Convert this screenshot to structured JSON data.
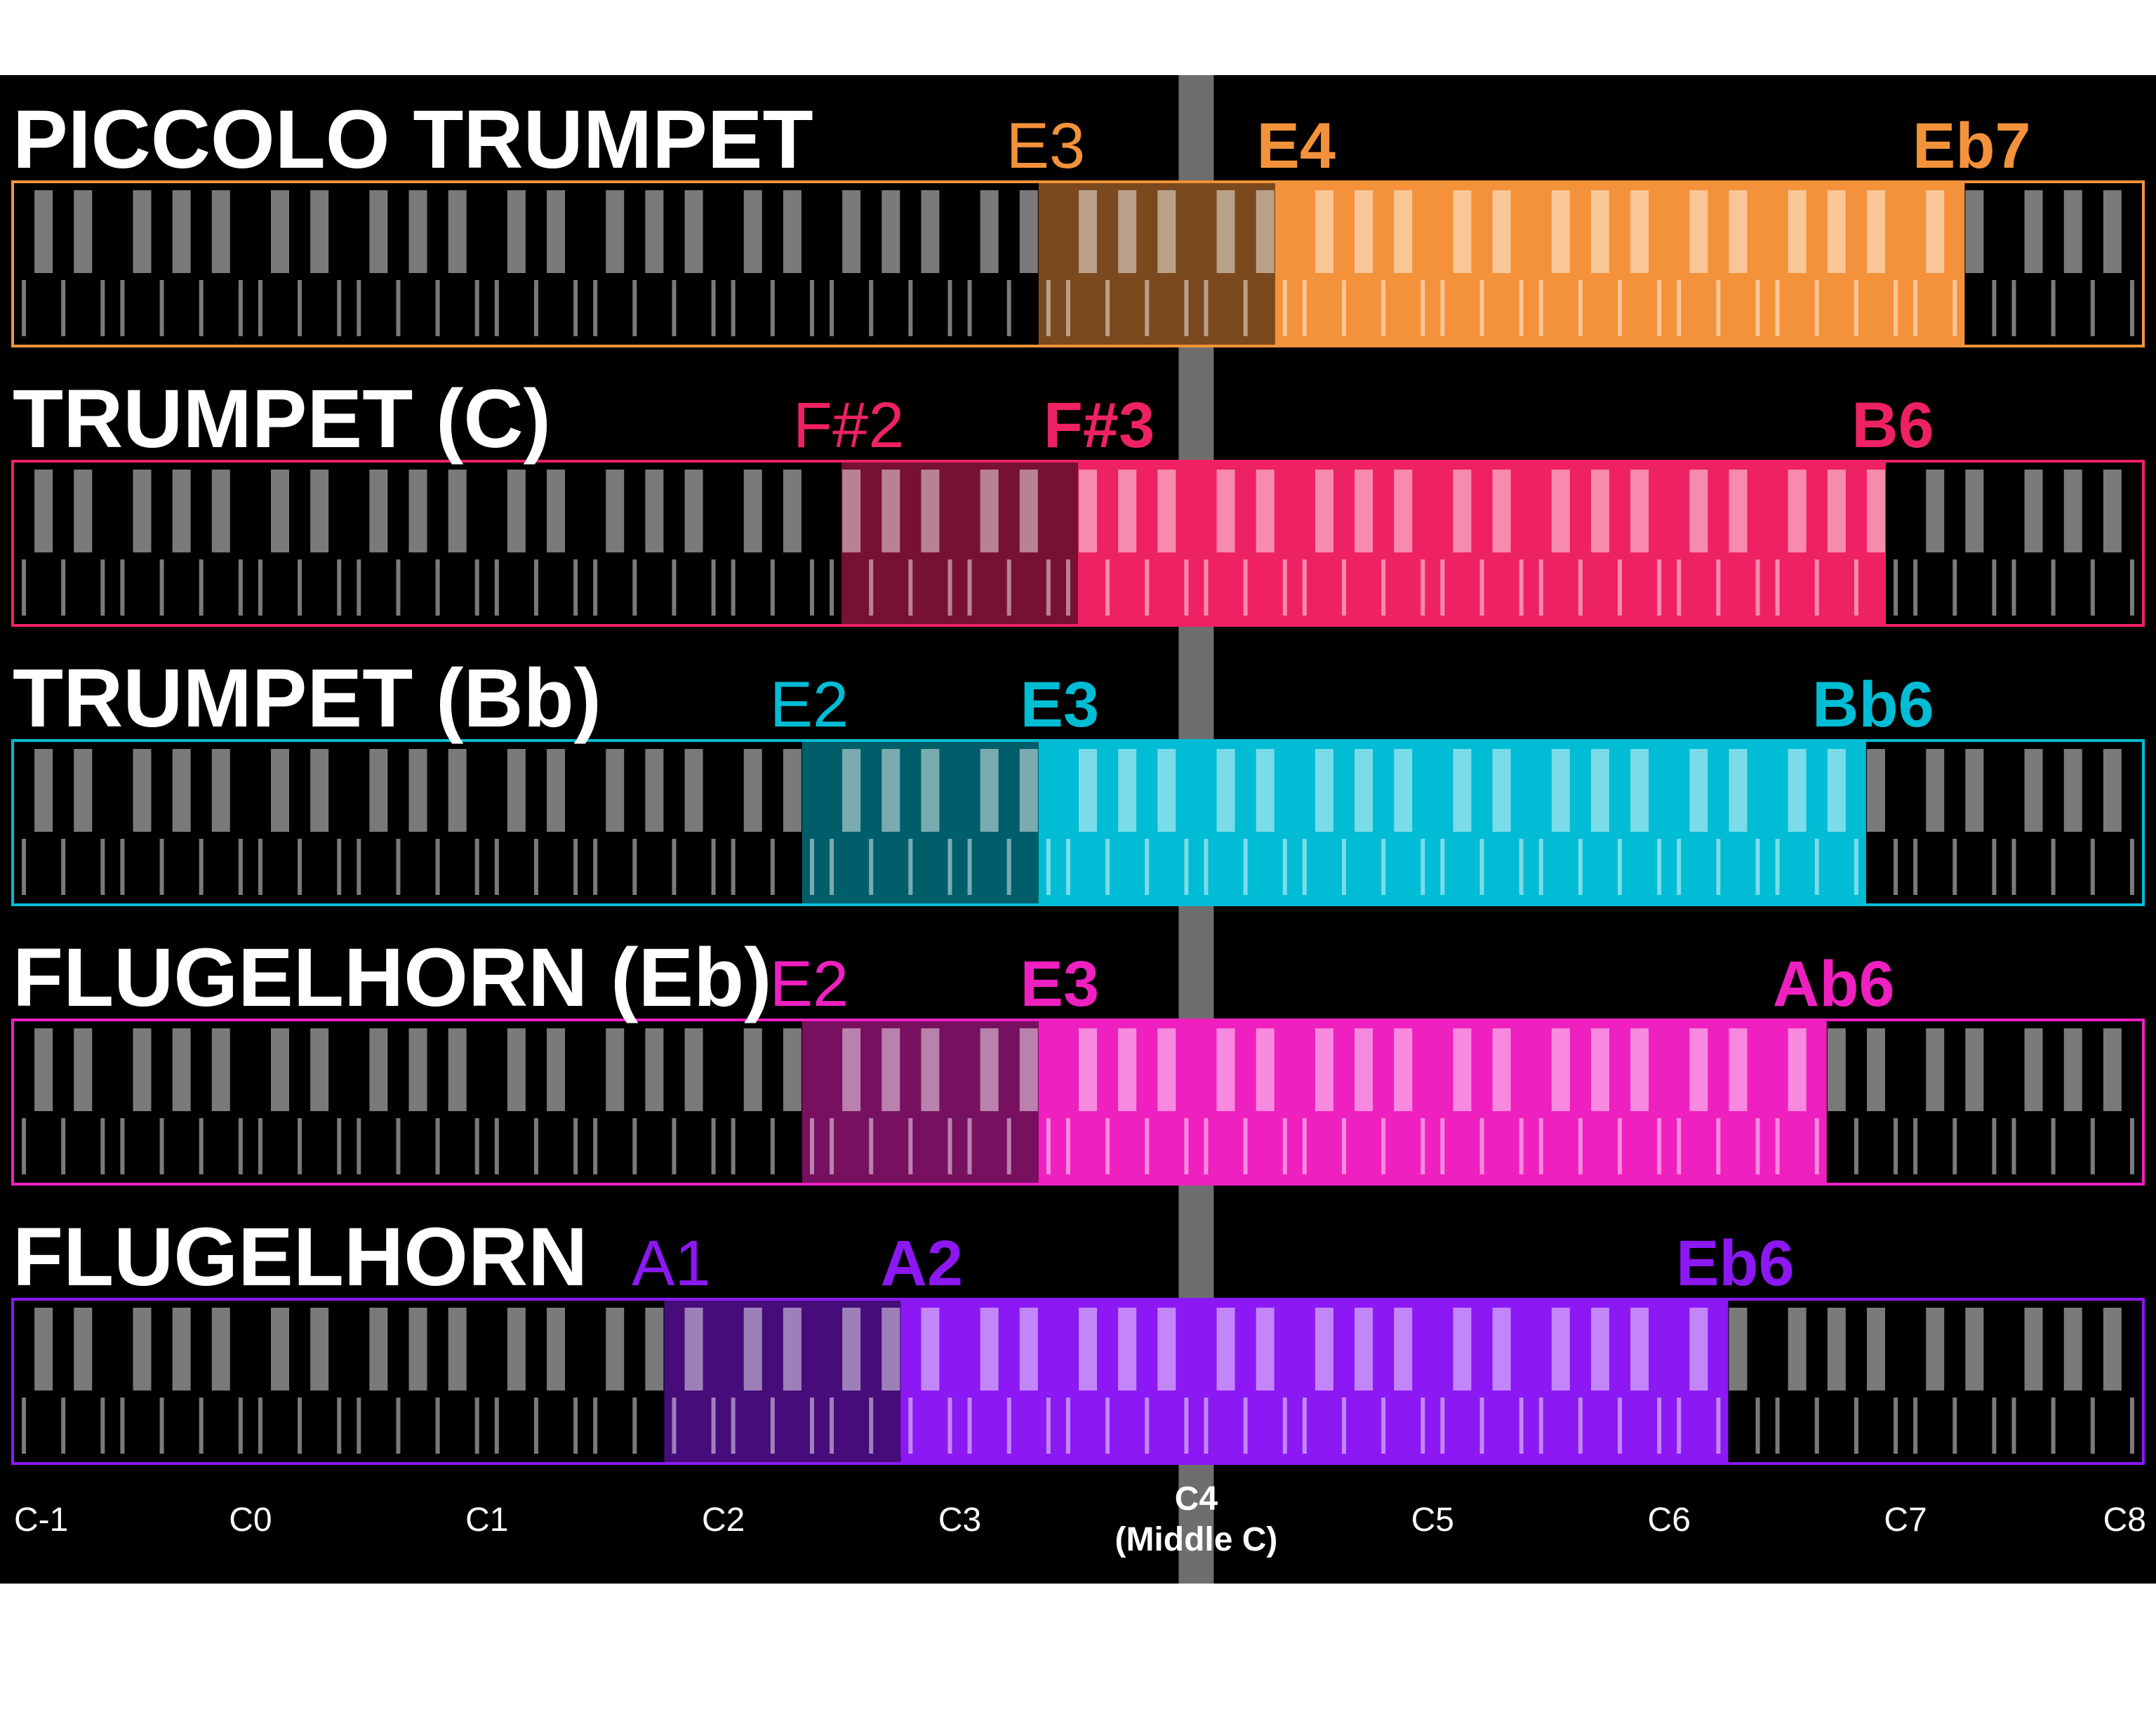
{
  "chart_data": {
    "type": "range",
    "instruments": [
      {
        "name": "PICCOLO TRUMPET",
        "color": "#f3923a",
        "extended_low": "E3",
        "low": "E4",
        "high": "Eb7",
        "extended_low_midi": 52,
        "low_midi": 64,
        "high_midi": 99
      },
      {
        "name": "TRUMPET (C)",
        "color": "#ee2262",
        "extended_low": "F#2",
        "low": "F#3",
        "high": "B6",
        "extended_low_midi": 42,
        "low_midi": 54,
        "high_midi": 95
      },
      {
        "name": "TRUMPET (Bb)",
        "color": "#00bcd4",
        "extended_low": "E2",
        "low": "E3",
        "high": "Bb6",
        "extended_low_midi": 40,
        "low_midi": 52,
        "high_midi": 94
      },
      {
        "name": "FLUGELHORN (Eb)",
        "color": "#ef20c0",
        "extended_low": "E2",
        "low": "E3",
        "high": "Ab6",
        "extended_low_midi": 40,
        "low_midi": 52,
        "high_midi": 92
      },
      {
        "name": "FLUGELHORN",
        "color": "#8c18f3",
        "extended_low": "A1",
        "low": "A2",
        "high": "Eb6",
        "extended_low_midi": 33,
        "low_midi": 45,
        "high_midi": 87
      }
    ],
    "octave_labels": [
      "C-1",
      "C0",
      "C1",
      "C2",
      "C3",
      "C4",
      "C5",
      "C6",
      "C7",
      "C8"
    ],
    "middle_c_label": "(Middle C)",
    "keyboard_low_midi": 0,
    "keyboard_high_midi": 108
  }
}
